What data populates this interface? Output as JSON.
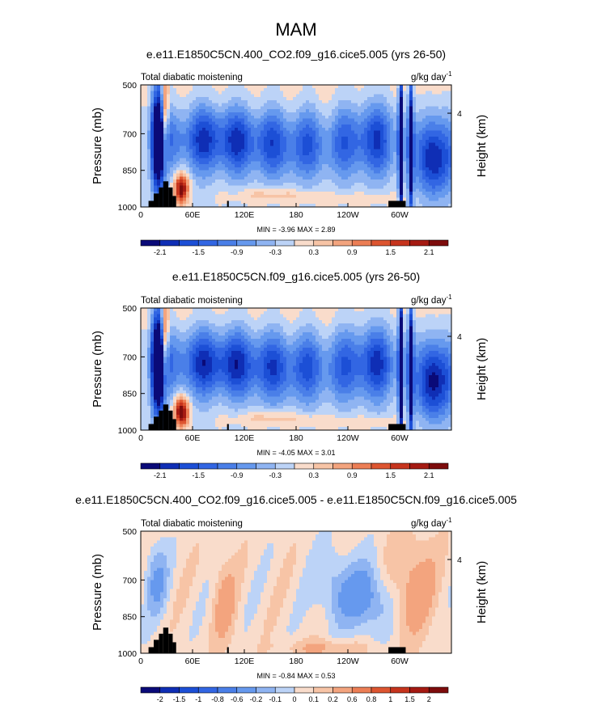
{
  "page_title": "MAM",
  "chart_data": [
    {
      "type": "heatmap",
      "title": "e.e11.E1850C5CN.400_CO2.f09_g16.cice5.005 (yrs 26-50)",
      "left_label": "Total diabatic moistening",
      "units_label": "g/kg day",
      "units_exponent": "-1",
      "ylabel": "Pressure (mb)",
      "ylabel_right": "Height (km)",
      "x_ticks": [
        "0",
        "60E",
        "120E",
        "180",
        "120W",
        "60W"
      ],
      "x_tick_lon": [
        0,
        60,
        120,
        180,
        240,
        300
      ],
      "xlim": [
        0,
        360
      ],
      "y_ticks": [
        "500",
        "700",
        "850",
        "1000"
      ],
      "y_tick_values": [
        500,
        700,
        850,
        1000
      ],
      "ylim": [
        1000,
        500
      ],
      "y_right_ticks": [
        "4"
      ],
      "y_right_tick_pressure": [
        616
      ],
      "stats": "MIN =  -3.96  MAX =   2.89",
      "min": -3.96,
      "max": 2.89,
      "colorbar_labels": [
        "-2.1",
        "-1.5",
        "-0.9",
        "-0.3",
        "0.3",
        "0.9",
        "1.5",
        "2.1"
      ],
      "colorbar_levels": [
        -2.4,
        -2.1,
        -1.8,
        -1.5,
        -1.2,
        -0.9,
        -0.6,
        -0.3,
        0,
        0.3,
        0.6,
        0.9,
        1.2,
        1.5,
        1.8,
        2.1,
        2.4
      ]
    },
    {
      "type": "heatmap",
      "title": "e.e11.E1850C5CN.f09_g16.cice5.005 (yrs 26-50)",
      "left_label": "Total diabatic moistening",
      "units_label": "g/kg day",
      "units_exponent": "-1",
      "ylabel": "Pressure (mb)",
      "ylabel_right": "Height (km)",
      "x_ticks": [
        "0",
        "60E",
        "120E",
        "180",
        "120W",
        "60W"
      ],
      "x_tick_lon": [
        0,
        60,
        120,
        180,
        240,
        300
      ],
      "xlim": [
        0,
        360
      ],
      "y_ticks": [
        "500",
        "700",
        "850",
        "1000"
      ],
      "y_tick_values": [
        500,
        700,
        850,
        1000
      ],
      "ylim": [
        1000,
        500
      ],
      "y_right_ticks": [
        "4"
      ],
      "y_right_tick_pressure": [
        616
      ],
      "stats": "MIN =  -4.05  MAX =   3.01",
      "min": -4.05,
      "max": 3.01,
      "colorbar_labels": [
        "-2.1",
        "-1.5",
        "-0.9",
        "-0.3",
        "0.3",
        "0.9",
        "1.5",
        "2.1"
      ],
      "colorbar_levels": [
        -2.4,
        -2.1,
        -1.8,
        -1.5,
        -1.2,
        -0.9,
        -0.6,
        -0.3,
        0,
        0.3,
        0.6,
        0.9,
        1.2,
        1.5,
        1.8,
        2.1,
        2.4
      ]
    },
    {
      "type": "heatmap",
      "title": "e.e11.E1850C5CN.400_CO2.f09_g16.cice5.005 - e.e11.E1850C5CN.f09_g16.cice5.005",
      "left_label": "Total diabatic moistening",
      "units_label": "g/kg day",
      "units_exponent": "-1",
      "ylabel": "Pressure (mb)",
      "ylabel_right": "Height (km)",
      "x_ticks": [
        "0",
        "60E",
        "120E",
        "180",
        "120W",
        "60W"
      ],
      "x_tick_lon": [
        0,
        60,
        120,
        180,
        240,
        300
      ],
      "xlim": [
        0,
        360
      ],
      "y_ticks": [
        "500",
        "700",
        "850",
        "1000"
      ],
      "y_tick_values": [
        500,
        700,
        850,
        1000
      ],
      "ylim": [
        1000,
        500
      ],
      "y_right_ticks": [
        "4"
      ],
      "y_right_tick_pressure": [
        616
      ],
      "stats": "MIN =  -0.84  MAX =   0.53",
      "min": -0.84,
      "max": 0.53,
      "colorbar_labels": [
        "-2",
        "-1.5",
        "-1",
        "-0.8",
        "-0.6",
        "-0.2",
        "-0.1",
        "0",
        "0.1",
        "0.2",
        "0.6",
        "0.8",
        "1",
        "1.5",
        "2"
      ],
      "colorbar_levels": [
        -2.5,
        -2,
        -1.5,
        -1,
        -0.8,
        -0.6,
        -0.2,
        -0.1,
        0,
        0.1,
        0.2,
        0.6,
        0.8,
        1,
        1.5,
        2,
        2.5
      ]
    }
  ],
  "colors": {
    "blue_red_16": [
      "#0a0a78",
      "#0f2eb5",
      "#1c4fd6",
      "#3266e3",
      "#4a7fe8",
      "#6699ee",
      "#8fb4f2",
      "#bcd3f7",
      "#f9dccb",
      "#f7c4a6",
      "#f3a47e",
      "#ec7e55",
      "#dd5530",
      "#c6341d",
      "#a51a12",
      "#7d0c0c"
    ],
    "topography": "#000000"
  }
}
